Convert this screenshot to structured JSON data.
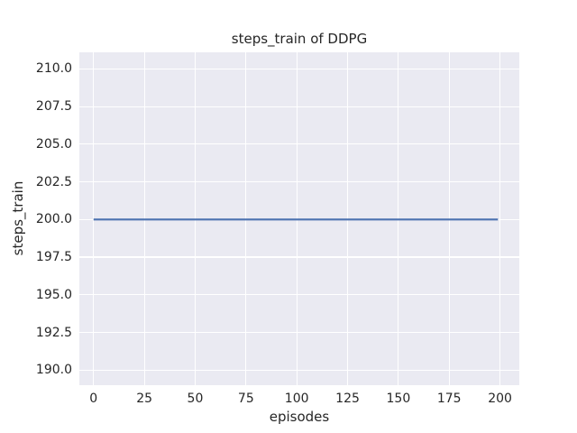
{
  "chart_data": {
    "type": "line",
    "title": "steps_train of DDPG",
    "xlabel": "episodes",
    "ylabel": "steps_train",
    "xlim": [
      -7,
      209.5
    ],
    "ylim": [
      189.0,
      211.1
    ],
    "x_tick_values": [
      0,
      25,
      50,
      75,
      100,
      125,
      150,
      175,
      200
    ],
    "x_tick_labels": [
      "0",
      "25",
      "50",
      "75",
      "100",
      "125",
      "150",
      "175",
      "200"
    ],
    "y_tick_values": [
      190.0,
      192.5,
      195.0,
      197.5,
      200.0,
      202.5,
      205.0,
      207.5,
      210.0
    ],
    "y_tick_labels": [
      "190.0",
      "192.5",
      "195.0",
      "197.5",
      "200.0",
      "202.5",
      "205.0",
      "207.5",
      "210.0"
    ],
    "grid": true,
    "legend": "none",
    "colors": {
      "plot_background": "#EAEAF2",
      "grid": "#FFFFFF",
      "text": "#262626",
      "line": "#4C72B0"
    },
    "series": [
      {
        "name": "steps_train",
        "color": "#4C72B0",
        "x": [
          0,
          199
        ],
        "y": [
          200,
          200
        ],
        "constant_value": 200
      }
    ]
  }
}
